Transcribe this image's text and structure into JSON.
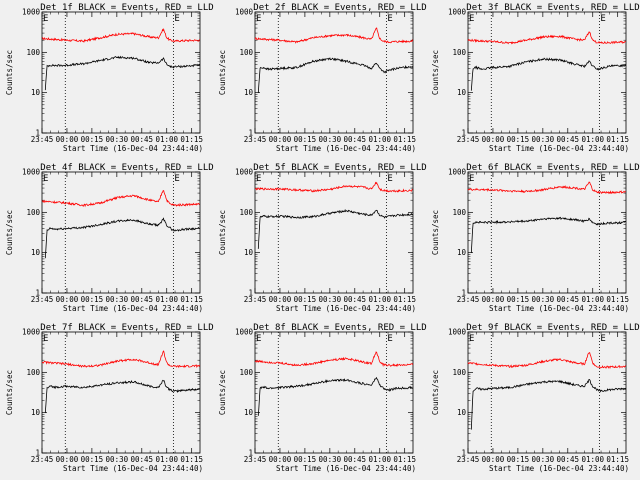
{
  "chart_data": [
    {
      "type": "line",
      "title": "Det 1f BLACK = Events, RED = LLD",
      "xlabel": "Start Time (16-Dec-04 23:44:40)",
      "ylabel": "Counts/sec",
      "y_scale": "log",
      "ylim": [
        1,
        1000
      ],
      "xlim": [
        "23:45",
        "01:20"
      ],
      "x_ticks": [
        "23:45",
        "00:00",
        "00:15",
        "00:30",
        "00:45",
        "01:00",
        "01:15"
      ],
      "y_ticks": [
        "1",
        "10",
        "100",
        "1000"
      ],
      "vlines": [
        {
          "x": "23:59",
          "label": "E"
        },
        {
          "x": "01:04",
          "label": "E"
        }
      ],
      "series": [
        {
          "name": "LLD",
          "color": "#ff0000",
          "x": [
            "23:45",
            "00:00",
            "00:10",
            "00:20",
            "00:30",
            "00:40",
            "00:50",
            "00:55",
            "00:58",
            "01:00",
            "01:02",
            "01:05",
            "01:10",
            "01:20"
          ],
          "y": [
            220,
            200,
            190,
            230,
            280,
            290,
            240,
            230,
            380,
            230,
            200,
            190,
            195,
            200
          ]
        },
        {
          "name": "Events",
          "color": "#000000",
          "x": [
            "23:47",
            "23:48",
            "23:50",
            "23:53",
            "00:00",
            "00:10",
            "00:20",
            "00:30",
            "00:40",
            "00:50",
            "00:55",
            "00:58",
            "01:00",
            "01:03",
            "01:05",
            "01:10",
            "01:20"
          ],
          "y": [
            12,
            45,
            48,
            47,
            48,
            52,
            63,
            75,
            72,
            55,
            55,
            70,
            50,
            43,
            44,
            45,
            48
          ]
        }
      ]
    },
    {
      "type": "line",
      "title": "Det 2f BLACK = Events, RED = LLD",
      "xlabel": "Start Time (16-Dec-04 23:44:40)",
      "ylabel": "Counts/sec",
      "y_scale": "log",
      "ylim": [
        1,
        1000
      ],
      "xlim": [
        "23:45",
        "01:20"
      ],
      "x_ticks": [
        "23:45",
        "00:00",
        "00:15",
        "00:30",
        "00:45",
        "01:00",
        "01:15"
      ],
      "y_ticks": [
        "1",
        "10",
        "100",
        "1000"
      ],
      "vlines": [
        {
          "x": "23:59",
          "label": "E"
        },
        {
          "x": "01:04",
          "label": "E"
        }
      ],
      "series": [
        {
          "name": "LLD",
          "color": "#ff0000",
          "x": [
            "23:45",
            "00:00",
            "00:10",
            "00:20",
            "00:30",
            "00:40",
            "00:50",
            "00:55",
            "00:58",
            "01:00",
            "01:02",
            "01:05",
            "01:10",
            "01:20"
          ],
          "y": [
            220,
            200,
            180,
            230,
            260,
            270,
            230,
            210,
            400,
            220,
            190,
            180,
            185,
            190
          ]
        },
        {
          "name": "Events",
          "color": "#000000",
          "x": [
            "23:47",
            "23:48",
            "23:50",
            "23:53",
            "00:00",
            "00:10",
            "00:20",
            "00:30",
            "00:40",
            "00:50",
            "00:55",
            "00:58",
            "01:00",
            "01:03",
            "01:05",
            "01:10",
            "01:20"
          ],
          "y": [
            10,
            40,
            42,
            38,
            40,
            42,
            60,
            70,
            60,
            48,
            40,
            55,
            40,
            32,
            35,
            40,
            45
          ]
        }
      ]
    },
    {
      "type": "line",
      "title": "Det 3f BLACK = Events, RED = LLD",
      "xlabel": "Start Time (16-Dec-04 23:44:40)",
      "ylabel": "Counts/sec",
      "y_scale": "log",
      "ylim": [
        1,
        1000
      ],
      "xlim": [
        "23:45",
        "01:20"
      ],
      "x_ticks": [
        "23:45",
        "00:00",
        "00:15",
        "00:30",
        "00:45",
        "01:00",
        "01:15"
      ],
      "y_ticks": [
        "1",
        "10",
        "100",
        "1000"
      ],
      "vlines": [
        {
          "x": "23:59",
          "label": "E"
        },
        {
          "x": "01:04",
          "label": "E"
        }
      ],
      "series": [
        {
          "name": "LLD",
          "color": "#ff0000",
          "x": [
            "23:45",
            "00:00",
            "00:10",
            "00:20",
            "00:30",
            "00:40",
            "00:50",
            "00:55",
            "00:58",
            "01:00",
            "01:02",
            "01:05",
            "01:10",
            "01:20"
          ],
          "y": [
            200,
            185,
            170,
            200,
            240,
            250,
            210,
            200,
            330,
            200,
            180,
            170,
            175,
            180
          ]
        },
        {
          "name": "Events",
          "color": "#000000",
          "x": [
            "23:47",
            "23:48",
            "23:50",
            "23:53",
            "00:00",
            "00:10",
            "00:20",
            "00:30",
            "00:40",
            "00:50",
            "00:55",
            "00:58",
            "01:00",
            "01:03",
            "01:05",
            "01:10",
            "01:20"
          ],
          "y": [
            11,
            40,
            42,
            38,
            42,
            45,
            58,
            68,
            65,
            50,
            45,
            60,
            45,
            38,
            40,
            45,
            48
          ]
        }
      ]
    },
    {
      "type": "line",
      "title": "Det 4f BLACK = Events, RED = LLD",
      "xlabel": "Start Time (16-Dec-04 23:44:40)",
      "ylabel": "Counts/sec",
      "y_scale": "log",
      "ylim": [
        1,
        1000
      ],
      "xlim": [
        "23:45",
        "01:20"
      ],
      "x_ticks": [
        "23:45",
        "00:00",
        "00:15",
        "00:30",
        "00:45",
        "01:00",
        "01:15"
      ],
      "y_ticks": [
        "1",
        "10",
        "100",
        "1000"
      ],
      "vlines": [
        {
          "x": "23:59",
          "label": "E"
        },
        {
          "x": "01:04",
          "label": "E"
        }
      ],
      "series": [
        {
          "name": "LLD",
          "color": "#ff0000",
          "x": [
            "23:45",
            "00:00",
            "00:10",
            "00:20",
            "00:30",
            "00:40",
            "00:50",
            "00:55",
            "00:58",
            "01:00",
            "01:02",
            "01:05",
            "01:10",
            "01:20"
          ],
          "y": [
            190,
            170,
            150,
            170,
            230,
            260,
            200,
            180,
            370,
            200,
            160,
            150,
            155,
            160
          ]
        },
        {
          "name": "Events",
          "color": "#000000",
          "x": [
            "23:47",
            "23:48",
            "23:50",
            "23:53",
            "00:00",
            "00:10",
            "00:20",
            "00:30",
            "00:40",
            "00:50",
            "00:55",
            "00:58",
            "01:00",
            "01:03",
            "01:05",
            "01:10",
            "01:20"
          ],
          "y": [
            7,
            35,
            40,
            38,
            40,
            42,
            50,
            60,
            65,
            50,
            48,
            68,
            48,
            38,
            35,
            38,
            40
          ]
        }
      ]
    },
    {
      "type": "line",
      "title": "Det 5f BLACK = Events, RED = LLD",
      "xlabel": "Start Time (16-Dec-04 23:44:40)",
      "ylabel": "Counts/sec",
      "y_scale": "log",
      "ylim": [
        1,
        1000
      ],
      "xlim": [
        "23:45",
        "01:20"
      ],
      "x_ticks": [
        "23:45",
        "00:00",
        "00:15",
        "00:30",
        "00:45",
        "01:00",
        "01:15"
      ],
      "y_ticks": [
        "1",
        "10",
        "100",
        "1000"
      ],
      "vlines": [
        {
          "x": "23:59",
          "label": "E"
        },
        {
          "x": "01:04",
          "label": "E"
        }
      ],
      "series": [
        {
          "name": "LLD",
          "color": "#ff0000",
          "x": [
            "23:45",
            "00:00",
            "00:10",
            "00:20",
            "00:30",
            "00:40",
            "00:50",
            "00:55",
            "00:58",
            "01:00",
            "01:02",
            "01:05",
            "01:10",
            "01:20"
          ],
          "y": [
            380,
            380,
            360,
            340,
            370,
            450,
            420,
            380,
            560,
            380,
            350,
            340,
            340,
            350
          ]
        },
        {
          "name": "Events",
          "color": "#000000",
          "x": [
            "23:47",
            "23:48",
            "23:50",
            "23:53",
            "00:00",
            "00:10",
            "00:20",
            "00:30",
            "00:40",
            "00:50",
            "00:55",
            "00:58",
            "01:00",
            "01:03",
            "01:05",
            "01:10",
            "01:20"
          ],
          "y": [
            13,
            75,
            80,
            78,
            80,
            75,
            78,
            95,
            110,
            90,
            85,
            115,
            85,
            75,
            78,
            85,
            90
          ]
        }
      ]
    },
    {
      "type": "line",
      "title": "Det 6f BLACK = Events, RED = LLD",
      "xlabel": "Start Time (16-Dec-04 23:44:40)",
      "ylabel": "Counts/sec",
      "y_scale": "log",
      "ylim": [
        1,
        1000
      ],
      "xlim": [
        "23:45",
        "01:20"
      ],
      "x_ticks": [
        "23:45",
        "00:00",
        "00:15",
        "00:30",
        "00:45",
        "01:00",
        "01:15"
      ],
      "y_ticks": [
        "1",
        "10",
        "100",
        "1000"
      ],
      "vlines": [
        {
          "x": "23:59",
          "label": "E"
        },
        {
          "x": "01:04",
          "label": "E"
        }
      ],
      "series": [
        {
          "name": "LLD",
          "color": "#ff0000",
          "x": [
            "23:45",
            "00:00",
            "00:10",
            "00:20",
            "00:30",
            "00:40",
            "00:50",
            "00:55",
            "00:58",
            "01:00",
            "01:02",
            "01:05",
            "01:10",
            "01:20"
          ],
          "y": [
            370,
            360,
            340,
            330,
            360,
            430,
            400,
            370,
            560,
            360,
            320,
            310,
            310,
            320
          ]
        },
        {
          "name": "Events",
          "color": "#000000",
          "x": [
            "23:47",
            "23:48",
            "23:50",
            "23:53",
            "00:00",
            "00:10",
            "00:20",
            "00:30",
            "00:40",
            "00:50",
            "00:55",
            "00:58",
            "01:00",
            "01:03",
            "01:05",
            "01:10",
            "01:20"
          ],
          "y": [
            10,
            55,
            57,
            56,
            57,
            58,
            60,
            68,
            72,
            65,
            60,
            68,
            55,
            50,
            52,
            54,
            56
          ]
        }
      ]
    },
    {
      "type": "line",
      "title": "Det 7f BLACK = Events, RED = LLD",
      "xlabel": "Start Time (16-Dec-04 23:44:40)",
      "ylabel": "Counts/sec",
      "y_scale": "log",
      "ylim": [
        1,
        1000
      ],
      "xlim": [
        "23:45",
        "01:20"
      ],
      "x_ticks": [
        "23:45",
        "00:00",
        "00:15",
        "00:30",
        "00:45",
        "01:00",
        "01:15"
      ],
      "y_ticks": [
        "1",
        "10",
        "100",
        "1000"
      ],
      "vlines": [
        {
          "x": "23:59",
          "label": "E"
        },
        {
          "x": "01:04",
          "label": "E"
        }
      ],
      "series": [
        {
          "name": "LLD",
          "color": "#ff0000",
          "x": [
            "23:45",
            "00:00",
            "00:10",
            "00:20",
            "00:30",
            "00:40",
            "00:50",
            "00:55",
            "00:58",
            "01:00",
            "01:02",
            "01:05",
            "01:10",
            "01:20"
          ],
          "y": [
            180,
            160,
            140,
            150,
            190,
            210,
            170,
            155,
            340,
            170,
            145,
            140,
            140,
            145
          ]
        },
        {
          "name": "Events",
          "color": "#000000",
          "x": [
            "23:47",
            "23:48",
            "23:50",
            "23:53",
            "00:00",
            "00:10",
            "00:20",
            "00:30",
            "00:40",
            "00:50",
            "00:55",
            "00:58",
            "01:00",
            "01:03",
            "01:05",
            "01:10",
            "01:20"
          ],
          "y": [
            10,
            40,
            45,
            43,
            45,
            42,
            48,
            55,
            58,
            45,
            42,
            65,
            42,
            35,
            34,
            36,
            38
          ]
        }
      ]
    },
    {
      "type": "line",
      "title": "Det 8f BLACK = Events, RED = LLD",
      "xlabel": "Start Time (16-Dec-04 23:44:40)",
      "ylabel": "Counts/sec",
      "y_scale": "log",
      "ylim": [
        1,
        1000
      ],
      "xlim": [
        "23:45",
        "01:20"
      ],
      "x_ticks": [
        "23:45",
        "00:00",
        "00:15",
        "00:30",
        "00:45",
        "01:00",
        "01:15"
      ],
      "y_ticks": [
        "1",
        "10",
        "100",
        "1000"
      ],
      "vlines": [
        {
          "x": "23:59",
          "label": "E"
        },
        {
          "x": "01:04",
          "label": "E"
        }
      ],
      "series": [
        {
          "name": "LLD",
          "color": "#ff0000",
          "x": [
            "23:45",
            "00:00",
            "00:10",
            "00:20",
            "00:30",
            "00:40",
            "00:50",
            "00:55",
            "00:58",
            "01:00",
            "01:02",
            "01:05",
            "01:10",
            "01:20"
          ],
          "y": [
            190,
            170,
            150,
            165,
            200,
            220,
            180,
            165,
            340,
            180,
            155,
            150,
            150,
            155
          ]
        },
        {
          "name": "Events",
          "color": "#000000",
          "x": [
            "23:47",
            "23:48",
            "23:50",
            "23:53",
            "00:00",
            "00:10",
            "00:20",
            "00:30",
            "00:40",
            "00:50",
            "00:55",
            "00:58",
            "01:00",
            "01:03",
            "01:05",
            "01:10",
            "01:20"
          ],
          "y": [
            8,
            40,
            43,
            40,
            42,
            45,
            52,
            62,
            65,
            52,
            48,
            75,
            48,
            38,
            36,
            40,
            42
          ]
        }
      ]
    },
    {
      "type": "line",
      "title": "Det 9f BLACK = Events, RED = LLD",
      "xlabel": "Start Time (16-Dec-04 23:44:40)",
      "ylabel": "Counts/sec",
      "y_scale": "log",
      "ylim": [
        1,
        1000
      ],
      "xlim": [
        "23:45",
        "01:20"
      ],
      "x_ticks": [
        "23:45",
        "00:00",
        "00:15",
        "00:30",
        "00:45",
        "01:00",
        "01:15"
      ],
      "y_ticks": [
        "1",
        "10",
        "100",
        "1000"
      ],
      "vlines": [
        {
          "x": "23:59",
          "label": "E"
        },
        {
          "x": "01:04",
          "label": "E"
        }
      ],
      "series": [
        {
          "name": "LLD",
          "color": "#ff0000",
          "x": [
            "23:45",
            "00:00",
            "00:10",
            "00:20",
            "00:30",
            "00:40",
            "00:50",
            "00:55",
            "00:58",
            "01:00",
            "01:02",
            "01:05",
            "01:10",
            "01:20"
          ],
          "y": [
            170,
            150,
            140,
            150,
            185,
            210,
            170,
            160,
            330,
            170,
            140,
            135,
            135,
            140
          ]
        },
        {
          "name": "Events",
          "color": "#000000",
          "x": [
            "23:47",
            "23:48",
            "23:50",
            "23:53",
            "00:00",
            "00:10",
            "00:20",
            "00:30",
            "00:40",
            "00:50",
            "00:55",
            "00:58",
            "01:00",
            "01:03",
            "01:05",
            "01:10",
            "01:20"
          ],
          "y": [
            4,
            35,
            40,
            38,
            40,
            42,
            50,
            58,
            60,
            48,
            45,
            65,
            45,
            36,
            34,
            37,
            40
          ]
        }
      ]
    }
  ]
}
